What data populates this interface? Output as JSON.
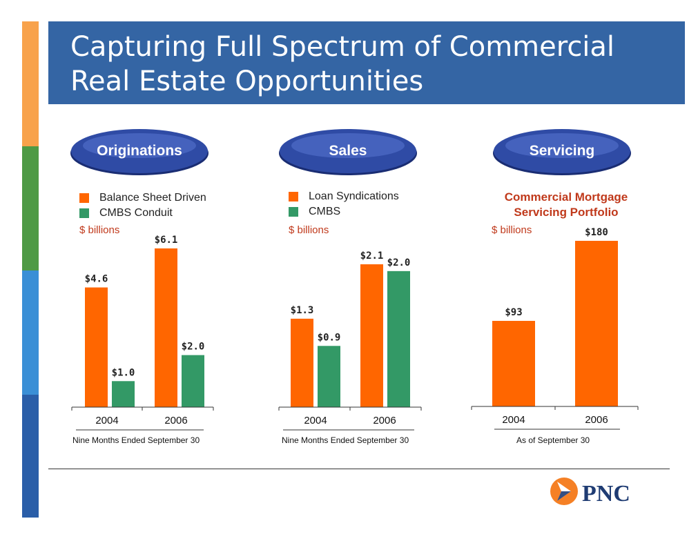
{
  "title": "Capturing Full Spectrum of Commercial Real Estate Opportunities",
  "colors": {
    "orange": "#ff6600",
    "green": "#339966",
    "title_band": "#3465a4",
    "stripes": [
      "#f8a24b",
      "#4e9a45",
      "#3a8fd6",
      "#2a5ea8"
    ]
  },
  "panels": {
    "originations": {
      "header": "Originations",
      "legend": [
        "Balance Sheet Driven",
        "CMBS Conduit"
      ],
      "units": "$ billions",
      "footnote": "Nine Months Ended September 30"
    },
    "sales": {
      "header": "Sales",
      "legend": [
        "Loan Syndications",
        "CMBS"
      ],
      "units": "$ billions",
      "footnote": "Nine Months Ended September 30"
    },
    "servicing": {
      "header": "Servicing",
      "subtitle": "Commercial Mortgage Servicing Portfolio",
      "units": "$ billions",
      "footnote": "As of September 30"
    }
  },
  "chart_data": [
    {
      "type": "bar",
      "categories": [
        "2004",
        "2006"
      ],
      "series": [
        {
          "name": "Balance Sheet Driven",
          "values": [
            4.6,
            6.1
          ],
          "labels": [
            "$4.6",
            "$6.1"
          ],
          "color": "#ff6600"
        },
        {
          "name": "CMBS Conduit",
          "values": [
            1.0,
            2.0
          ],
          "labels": [
            "$1.0",
            "$2.0"
          ],
          "color": "#339966"
        }
      ],
      "ylabel": "$ billions",
      "ylim": [
        0,
        6.1
      ],
      "grid": false
    },
    {
      "type": "bar",
      "categories": [
        "2004",
        "2006"
      ],
      "series": [
        {
          "name": "Loan Syndications",
          "values": [
            1.3,
            2.1
          ],
          "labels": [
            "$1.3",
            "$2.1"
          ],
          "color": "#ff6600"
        },
        {
          "name": "CMBS",
          "values": [
            0.9,
            2.0
          ],
          "labels": [
            "$0.9",
            "$2.0"
          ],
          "color": "#339966"
        }
      ],
      "ylabel": "$ billions",
      "ylim": [
        0,
        2.1
      ],
      "grid": false
    },
    {
      "type": "bar",
      "categories": [
        "2004",
        "2006"
      ],
      "series": [
        {
          "values": [
            93,
            180
          ],
          "labels": [
            "$93",
            "$180"
          ],
          "color": "#ff6600"
        }
      ],
      "title": "Commercial Mortgage Servicing Portfolio",
      "ylabel": "$ billions",
      "ylim": [
        0,
        180
      ],
      "grid": false
    }
  ],
  "logo": {
    "text": "PNC"
  }
}
